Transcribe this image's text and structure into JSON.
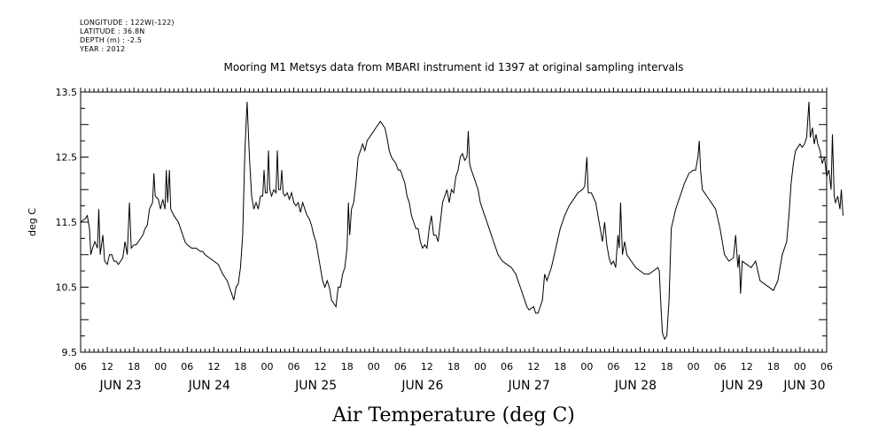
{
  "header": {
    "longitude": "LONGITUDE : 122W(-122)",
    "latitude": "LATITUDE : 36.8N",
    "depth": "DEPTH (m) : -2.5",
    "year": "YEAR : 2012"
  },
  "chart_data": {
    "type": "line",
    "title": "Mooring M1 Metsys data from MBARI instrument id 1397 at original sampling intervals",
    "xlabel": "Air Temperature (deg C)",
    "ylabel": "deg C",
    "x_unit": "hours from 06:00 Jun 22, 2012",
    "xlim": [
      0,
      168
    ],
    "ylim": [
      9.5,
      13.5
    ],
    "yticks": [
      "9.5",
      "10.5",
      "11.5",
      "12.5",
      "13.5"
    ],
    "xtick_hours": [
      "06",
      "12",
      "18",
      "00",
      "06",
      "12",
      "18",
      "00",
      "06",
      "12",
      "18",
      "00",
      "06",
      "12",
      "18",
      "00",
      "06",
      "12",
      "18",
      "00",
      "06",
      "12",
      "18",
      "00",
      "06",
      "12",
      "18",
      "00",
      "06"
    ],
    "date_labels": [
      "JUN 23",
      "JUN 24",
      "JUN 25",
      "JUN 26",
      "JUN 27",
      "JUN 28",
      "JUN 29",
      "JUN 30"
    ],
    "date_label_hours": [
      9,
      29,
      53,
      77,
      101,
      125,
      149,
      163
    ],
    "series": [
      {
        "name": "Air Temperature",
        "points": [
          [
            0,
            11.5
          ],
          [
            1,
            11.55
          ],
          [
            1.5,
            11.6
          ],
          [
            2,
            11.4
          ],
          [
            2.3,
            11.0
          ],
          [
            2.7,
            11.1
          ],
          [
            3.2,
            11.2
          ],
          [
            3.8,
            11.1
          ],
          [
            4.1,
            11.7
          ],
          [
            4.4,
            11.0
          ],
          [
            5,
            11.3
          ],
          [
            5.4,
            10.9
          ],
          [
            6,
            10.85
          ],
          [
            6.5,
            11.0
          ],
          [
            7,
            11.0
          ],
          [
            7.5,
            10.9
          ],
          [
            8,
            10.9
          ],
          [
            8.5,
            10.85
          ],
          [
            9,
            10.9
          ],
          [
            9.5,
            10.95
          ],
          [
            10,
            11.2
          ],
          [
            10.5,
            11.0
          ],
          [
            11,
            11.8
          ],
          [
            11.4,
            11.1
          ],
          [
            12,
            11.15
          ],
          [
            12.5,
            11.15
          ],
          [
            13,
            11.2
          ],
          [
            13.5,
            11.25
          ],
          [
            14,
            11.3
          ],
          [
            14.5,
            11.4
          ],
          [
            15,
            11.45
          ],
          [
            15.5,
            11.7
          ],
          [
            16.2,
            11.8
          ],
          [
            16.5,
            12.25
          ],
          [
            16.8,
            11.9
          ],
          [
            17.5,
            11.85
          ],
          [
            18,
            11.7
          ],
          [
            18.5,
            11.85
          ],
          [
            19,
            11.7
          ],
          [
            19.3,
            12.3
          ],
          [
            19.6,
            11.8
          ],
          [
            20,
            12.3
          ],
          [
            20.3,
            11.7
          ],
          [
            21,
            11.6
          ],
          [
            22,
            11.5
          ],
          [
            22.5,
            11.4
          ],
          [
            23,
            11.3
          ],
          [
            23.5,
            11.2
          ],
          [
            24,
            11.15
          ],
          [
            25,
            11.1
          ],
          [
            26,
            11.1
          ],
          [
            27,
            11.05
          ],
          [
            27.5,
            11.05
          ],
          [
            28,
            11.0
          ],
          [
            29,
            10.95
          ],
          [
            30,
            10.9
          ],
          [
            31,
            10.85
          ],
          [
            32,
            10.7
          ],
          [
            33,
            10.6
          ],
          [
            33.5,
            10.5
          ],
          [
            34,
            10.4
          ],
          [
            34.5,
            10.3
          ],
          [
            35,
            10.5
          ],
          [
            35.5,
            10.55
          ],
          [
            36,
            10.8
          ],
          [
            36.5,
            11.3
          ],
          [
            37,
            12.6
          ],
          [
            37.5,
            13.35
          ],
          [
            38,
            12.5
          ],
          [
            38.5,
            11.9
          ],
          [
            39,
            11.7
          ],
          [
            39.5,
            11.8
          ],
          [
            40,
            11.7
          ],
          [
            40.5,
            11.9
          ],
          [
            41,
            11.9
          ],
          [
            41.3,
            12.3
          ],
          [
            41.6,
            11.95
          ],
          [
            42,
            11.95
          ],
          [
            42.3,
            12.6
          ],
          [
            42.6,
            12.0
          ],
          [
            43,
            11.9
          ],
          [
            43.5,
            12.0
          ],
          [
            44,
            11.95
          ],
          [
            44.3,
            12.6
          ],
          [
            44.6,
            12.0
          ],
          [
            45,
            12.0
          ],
          [
            45.3,
            12.3
          ],
          [
            45.6,
            11.95
          ],
          [
            46,
            11.9
          ],
          [
            46.5,
            11.95
          ],
          [
            47,
            11.85
          ],
          [
            47.5,
            11.95
          ],
          [
            48,
            11.8
          ],
          [
            48.5,
            11.75
          ],
          [
            49,
            11.8
          ],
          [
            49.5,
            11.65
          ],
          [
            50,
            11.8
          ],
          [
            50.5,
            11.7
          ],
          [
            51,
            11.6
          ],
          [
            51.5,
            11.55
          ],
          [
            52,
            11.45
          ],
          [
            52.5,
            11.3
          ],
          [
            53,
            11.2
          ],
          [
            53.5,
            11.0
          ],
          [
            54,
            10.8
          ],
          [
            54.5,
            10.6
          ],
          [
            55,
            10.5
          ],
          [
            55.5,
            10.6
          ],
          [
            56,
            10.5
          ],
          [
            56.5,
            10.3
          ],
          [
            57,
            10.25
          ],
          [
            57.5,
            10.2
          ],
          [
            58,
            10.5
          ],
          [
            58.5,
            10.5
          ],
          [
            59,
            10.7
          ],
          [
            59.5,
            10.8
          ],
          [
            60,
            11.1
          ],
          [
            60.3,
            11.8
          ],
          [
            60.6,
            11.3
          ],
          [
            61,
            11.7
          ],
          [
            61.5,
            11.8
          ],
          [
            62,
            12.1
          ],
          [
            62.5,
            12.5
          ],
          [
            63,
            12.6
          ],
          [
            63.5,
            12.7
          ],
          [
            64,
            12.6
          ],
          [
            64.5,
            12.75
          ],
          [
            65,
            12.8
          ],
          [
            65.5,
            12.85
          ],
          [
            66,
            12.9
          ],
          [
            66.5,
            12.95
          ],
          [
            67,
            13.0
          ],
          [
            67.5,
            13.05
          ],
          [
            68,
            13.0
          ],
          [
            68.5,
            12.95
          ],
          [
            69,
            12.8
          ],
          [
            69.5,
            12.6
          ],
          [
            70,
            12.5
          ],
          [
            70.5,
            12.45
          ],
          [
            71,
            12.4
          ],
          [
            71.5,
            12.3
          ],
          [
            72,
            12.3
          ],
          [
            72.5,
            12.2
          ],
          [
            73,
            12.1
          ],
          [
            73.5,
            11.9
          ],
          [
            74,
            11.8
          ],
          [
            74.5,
            11.6
          ],
          [
            75,
            11.5
          ],
          [
            75.5,
            11.4
          ],
          [
            76,
            11.4
          ],
          [
            76.5,
            11.2
          ],
          [
            77,
            11.1
          ],
          [
            77.5,
            11.15
          ],
          [
            78,
            11.1
          ],
          [
            78.5,
            11.4
          ],
          [
            79,
            11.6
          ],
          [
            79.5,
            11.3
          ],
          [
            80,
            11.3
          ],
          [
            80.5,
            11.2
          ],
          [
            81,
            11.5
          ],
          [
            81.5,
            11.8
          ],
          [
            82,
            11.9
          ],
          [
            82.5,
            12.0
          ],
          [
            83,
            11.8
          ],
          [
            83.5,
            12.0
          ],
          [
            84,
            11.95
          ],
          [
            84.5,
            12.2
          ],
          [
            85,
            12.3
          ],
          [
            85.5,
            12.5
          ],
          [
            86,
            12.55
          ],
          [
            86.5,
            12.45
          ],
          [
            87,
            12.5
          ],
          [
            87.3,
            12.9
          ],
          [
            87.6,
            12.4
          ],
          [
            88,
            12.3
          ],
          [
            88.5,
            12.2
          ],
          [
            89,
            12.1
          ],
          [
            89.5,
            12.0
          ],
          [
            90,
            11.8
          ],
          [
            91,
            11.6
          ],
          [
            92,
            11.4
          ],
          [
            93,
            11.2
          ],
          [
            94,
            11.0
          ],
          [
            95,
            10.9
          ],
          [
            96,
            10.85
          ],
          [
            97,
            10.8
          ],
          [
            98,
            10.7
          ],
          [
            99,
            10.5
          ],
          [
            100,
            10.3
          ],
          [
            100.5,
            10.2
          ],
          [
            101,
            10.15
          ],
          [
            102,
            10.2
          ],
          [
            102.5,
            10.1
          ],
          [
            103,
            10.1
          ],
          [
            103.5,
            10.2
          ],
          [
            104,
            10.3
          ],
          [
            104.5,
            10.7
          ],
          [
            105,
            10.6
          ],
          [
            106,
            10.8
          ],
          [
            107,
            11.1
          ],
          [
            108,
            11.4
          ],
          [
            109,
            11.6
          ],
          [
            110,
            11.75
          ],
          [
            111,
            11.85
          ],
          [
            112,
            11.95
          ],
          [
            113,
            12.0
          ],
          [
            113.5,
            12.05
          ],
          [
            114,
            12.5
          ],
          [
            114.3,
            11.95
          ],
          [
            115,
            11.95
          ],
          [
            116,
            11.8
          ],
          [
            116.5,
            11.6
          ],
          [
            117,
            11.4
          ],
          [
            117.5,
            11.2
          ],
          [
            118,
            11.5
          ],
          [
            118.5,
            11.15
          ],
          [
            119,
            10.95
          ],
          [
            119.5,
            10.85
          ],
          [
            120,
            10.9
          ],
          [
            120.5,
            10.8
          ],
          [
            121,
            11.3
          ],
          [
            121.3,
            11.1
          ],
          [
            121.6,
            11.8
          ],
          [
            122,
            11.0
          ],
          [
            122.5,
            11.2
          ],
          [
            123,
            11.0
          ],
          [
            124,
            10.9
          ],
          [
            125,
            10.8
          ],
          [
            126,
            10.75
          ],
          [
            127,
            10.7
          ],
          [
            128,
            10.7
          ],
          [
            129,
            10.75
          ],
          [
            130,
            10.8
          ],
          [
            130.3,
            10.75
          ],
          [
            130.6,
            10.3
          ],
          [
            131,
            9.8
          ],
          [
            131.5,
            9.7
          ],
          [
            132,
            9.75
          ],
          [
            132.5,
            10.3
          ],
          [
            133,
            11.4
          ],
          [
            134,
            11.7
          ],
          [
            135,
            11.9
          ],
          [
            136,
            12.1
          ],
          [
            137,
            12.25
          ],
          [
            138,
            12.3
          ],
          [
            138.5,
            12.3
          ],
          [
            139,
            12.5
          ],
          [
            139.3,
            12.75
          ],
          [
            139.6,
            12.3
          ],
          [
            140,
            12.0
          ],
          [
            141,
            11.9
          ],
          [
            142,
            11.8
          ],
          [
            143,
            11.7
          ],
          [
            144,
            11.4
          ],
          [
            145,
            11.0
          ],
          [
            146,
            10.9
          ],
          [
            147,
            10.95
          ],
          [
            147.5,
            11.3
          ],
          [
            148,
            10.8
          ],
          [
            148.3,
            11.0
          ],
          [
            148.6,
            10.4
          ],
          [
            149,
            10.9
          ],
          [
            150,
            10.85
          ],
          [
            151,
            10.8
          ],
          [
            152,
            10.9
          ],
          [
            153,
            10.6
          ],
          [
            156,
            10.45
          ],
          [
            157,
            10.6
          ],
          [
            158,
            11.0
          ],
          [
            159,
            11.2
          ],
          [
            159.5,
            11.6
          ],
          [
            160,
            12.1
          ],
          [
            160.5,
            12.4
          ],
          [
            161,
            12.6
          ],
          [
            162,
            12.7
          ],
          [
            162.5,
            12.65
          ],
          [
            163,
            12.7
          ],
          [
            163.5,
            12.8
          ],
          [
            164,
            13.35
          ],
          [
            164.3,
            12.8
          ],
          [
            164.8,
            12.95
          ],
          [
            165.2,
            12.7
          ],
          [
            165.6,
            12.85
          ],
          [
            166,
            12.7
          ],
          [
            166.5,
            12.6
          ],
          [
            167,
            12.4
          ],
          [
            167.5,
            12.5
          ],
          [
            168,
            12.2
          ],
          [
            168.5,
            12.3
          ],
          [
            169,
            12.0
          ],
          [
            169.3,
            12.85
          ],
          [
            169.7,
            11.9
          ],
          [
            170,
            11.8
          ],
          [
            170.5,
            11.9
          ],
          [
            171,
            11.7
          ],
          [
            171.3,
            12.0
          ],
          [
            171.7,
            11.6
          ]
        ]
      }
    ],
    "grid": false,
    "legend": "none"
  }
}
